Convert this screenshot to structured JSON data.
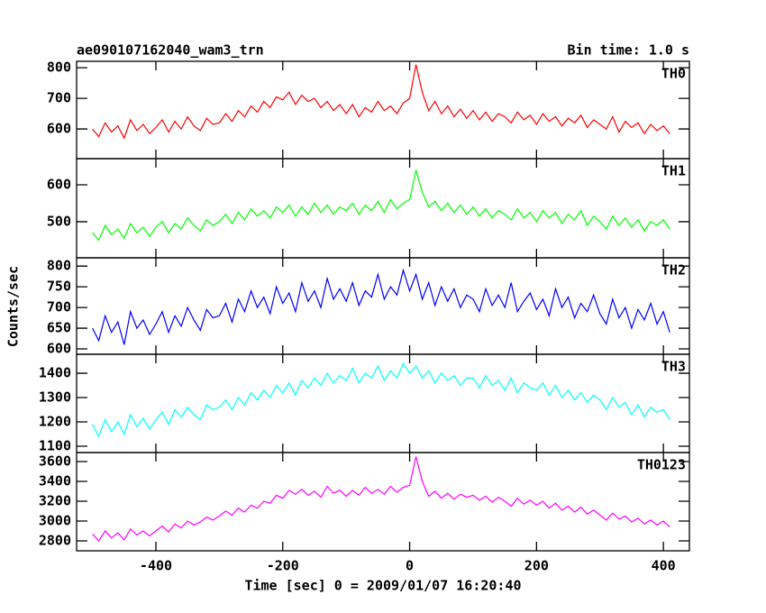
{
  "title": "ae090107162040_wam3_trn",
  "bin_time": "Bin time: 1.0 s",
  "x_label": "Time [sec] 0 = 2009/01/07 16:20:40",
  "y_label": "Counts/sec",
  "xlim": [
    -525,
    441
  ],
  "xticks": [
    -400,
    -200,
    0,
    200,
    400
  ],
  "x": [
    -500,
    -490,
    -480,
    -470,
    -460,
    -450,
    -440,
    -430,
    -420,
    -410,
    -400,
    -390,
    -380,
    -370,
    -360,
    -350,
    -340,
    -330,
    -320,
    -310,
    -300,
    -290,
    -280,
    -270,
    -260,
    -250,
    -240,
    -230,
    -220,
    -210,
    -200,
    -190,
    -180,
    -170,
    -160,
    -150,
    -140,
    -130,
    -120,
    -110,
    -100,
    -90,
    -80,
    -70,
    -60,
    -50,
    -40,
    -30,
    -20,
    -10,
    0,
    10,
    20,
    30,
    40,
    50,
    60,
    70,
    80,
    90,
    100,
    110,
    120,
    130,
    140,
    150,
    160,
    170,
    180,
    190,
    200,
    210,
    220,
    230,
    240,
    250,
    260,
    270,
    280,
    290,
    300,
    310,
    320,
    330,
    340,
    350,
    360,
    370,
    380,
    390,
    400,
    410
  ],
  "chart_data": [
    {
      "type": "line",
      "label": "TH0",
      "color": "#ff0000",
      "ylim": [
        503,
        821
      ],
      "yticks": [
        600,
        700,
        800
      ],
      "values": [
        600,
        575,
        620,
        590,
        610,
        570,
        630,
        595,
        615,
        585,
        605,
        630,
        590,
        625,
        600,
        640,
        610,
        595,
        635,
        615,
        620,
        650,
        625,
        660,
        640,
        675,
        655,
        690,
        670,
        705,
        695,
        720,
        680,
        710,
        690,
        700,
        670,
        690,
        660,
        680,
        650,
        680,
        640,
        670,
        655,
        690,
        660,
        675,
        650,
        685,
        700,
        810,
        720,
        660,
        690,
        650,
        675,
        640,
        665,
        635,
        660,
        630,
        655,
        625,
        650,
        640,
        620,
        655,
        630,
        645,
        615,
        650,
        625,
        640,
        610,
        635,
        620,
        645,
        605,
        630,
        615,
        600,
        640,
        590,
        625,
        605,
        620,
        585,
        615,
        595,
        610,
        585
      ]
    },
    {
      "type": "line",
      "label": "TH1",
      "color": "#00ff00",
      "ylim": [
        402,
        671
      ],
      "yticks": [
        500,
        600
      ],
      "values": [
        470,
        450,
        490,
        465,
        480,
        455,
        495,
        470,
        485,
        460,
        485,
        500,
        470,
        495,
        480,
        510,
        490,
        475,
        505,
        490,
        500,
        520,
        495,
        525,
        505,
        535,
        515,
        530,
        510,
        540,
        525,
        545,
        515,
        540,
        520,
        550,
        525,
        545,
        520,
        540,
        530,
        550,
        520,
        545,
        530,
        555,
        525,
        560,
        535,
        550,
        560,
        640,
        580,
        540,
        555,
        530,
        550,
        525,
        545,
        520,
        540,
        515,
        535,
        510,
        530,
        520,
        505,
        535,
        510,
        525,
        500,
        530,
        510,
        525,
        495,
        520,
        505,
        530,
        490,
        515,
        500,
        480,
        515,
        490,
        510,
        485,
        505,
        475,
        500,
        490,
        505,
        480
      ]
    },
    {
      "type": "line",
      "label": "TH2",
      "color": "#0000ff",
      "ylim": [
        587,
        820
      ],
      "yticks": [
        600,
        650,
        700,
        750,
        800
      ],
      "values": [
        650,
        620,
        680,
        640,
        665,
        610,
        690,
        650,
        670,
        635,
        660,
        690,
        640,
        680,
        655,
        700,
        670,
        645,
        695,
        675,
        680,
        710,
        665,
        720,
        690,
        740,
        700,
        725,
        685,
        750,
        710,
        735,
        690,
        760,
        715,
        740,
        700,
        770,
        720,
        745,
        715,
        760,
        705,
        740,
        725,
        780,
        720,
        750,
        730,
        790,
        740,
        780,
        720,
        760,
        705,
        750,
        715,
        745,
        700,
        730,
        720,
        690,
        745,
        705,
        730,
        700,
        760,
        690,
        715,
        735,
        695,
        720,
        680,
        745,
        700,
        725,
        675,
        710,
        690,
        730,
        685,
        660,
        720,
        675,
        700,
        650,
        695,
        670,
        710,
        660,
        690,
        640
      ]
    },
    {
      "type": "line",
      "label": "TH3",
      "color": "#00ffff",
      "ylim": [
        1074,
        1478
      ],
      "yticks": [
        1100,
        1200,
        1300,
        1400
      ],
      "values": [
        1190,
        1140,
        1210,
        1160,
        1200,
        1150,
        1230,
        1180,
        1215,
        1170,
        1210,
        1240,
        1190,
        1250,
        1220,
        1260,
        1230,
        1210,
        1270,
        1250,
        1260,
        1290,
        1250,
        1300,
        1270,
        1320,
        1290,
        1330,
        1300,
        1350,
        1320,
        1360,
        1310,
        1370,
        1340,
        1380,
        1350,
        1400,
        1360,
        1390,
        1370,
        1420,
        1360,
        1400,
        1380,
        1430,
        1370,
        1410,
        1380,
        1440,
        1400,
        1430,
        1380,
        1410,
        1360,
        1400,
        1370,
        1390,
        1350,
        1380,
        1380,
        1340,
        1390,
        1350,
        1370,
        1330,
        1380,
        1320,
        1360,
        1340,
        1330,
        1360,
        1310,
        1350,
        1300,
        1330,
        1290,
        1320,
        1280,
        1310,
        1290,
        1250,
        1300,
        1260,
        1280,
        1230,
        1270,
        1220,
        1260,
        1240,
        1250,
        1210
      ]
    },
    {
      "type": "line",
      "label": "TH0123",
      "color": "#ff00ff",
      "ylim": [
        2700,
        3691
      ],
      "yticks": [
        2800,
        3000,
        3200,
        3400,
        3600
      ],
      "values": [
        2870,
        2800,
        2900,
        2830,
        2880,
        2810,
        2920,
        2860,
        2900,
        2850,
        2900,
        2950,
        2890,
        2970,
        2930,
        3000,
        2960,
        2990,
        3040,
        3010,
        3050,
        3100,
        3060,
        3130,
        3090,
        3160,
        3130,
        3200,
        3180,
        3260,
        3230,
        3310,
        3270,
        3320,
        3260,
        3300,
        3240,
        3350,
        3280,
        3310,
        3250,
        3310,
        3260,
        3340,
        3280,
        3320,
        3270,
        3350,
        3290,
        3340,
        3360,
        3650,
        3400,
        3250,
        3300,
        3230,
        3280,
        3220,
        3270,
        3240,
        3260,
        3210,
        3250,
        3190,
        3240,
        3200,
        3150,
        3230,
        3170,
        3210,
        3160,
        3200,
        3130,
        3180,
        3110,
        3150,
        3090,
        3140,
        3070,
        3110,
        3060,
        3010,
        3080,
        3020,
        3050,
        2990,
        3030,
        2970,
        3010,
        2960,
        3000,
        2940
      ]
    }
  ]
}
